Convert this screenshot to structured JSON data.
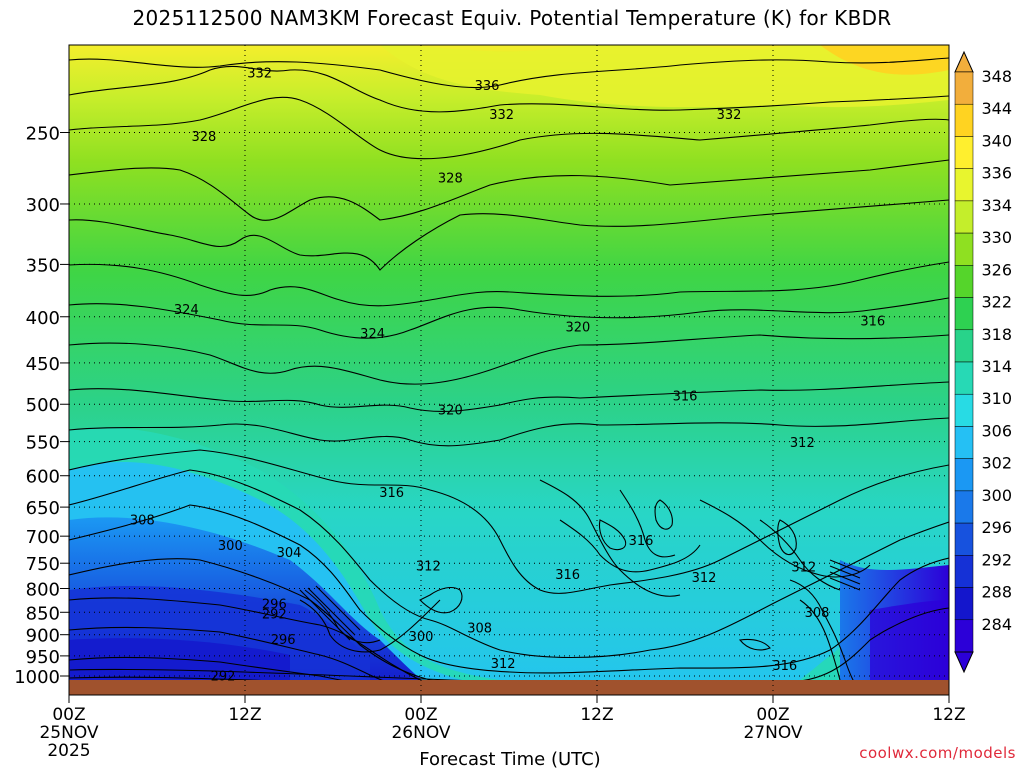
{
  "chart_data": {
    "type": "heatmap",
    "title": "2025112500 NAM3KM Forecast Equiv. Potential Temperature (K) for KBDR",
    "xlabel": "Forecast Time (UTC)",
    "ylabel": "",
    "y_ticks": [
      250,
      300,
      350,
      400,
      450,
      500,
      550,
      600,
      650,
      700,
      750,
      800,
      850,
      900,
      950,
      1000
    ],
    "x_ticks": [
      {
        "hour": 0,
        "label": "00Z",
        "sub": "25NOV",
        "sub2": "2025"
      },
      {
        "hour": 12,
        "label": "12Z"
      },
      {
        "hour": 24,
        "label": "00Z",
        "sub": "26NOV"
      },
      {
        "hour": 36,
        "label": "12Z"
      },
      {
        "hour": 48,
        "label": "00Z",
        "sub": "27NOV"
      },
      {
        "hour": 60,
        "label": "12Z"
      }
    ],
    "xlim": [
      0,
      60
    ],
    "ylim": [
      1000,
      200
    ],
    "colorbar": {
      "levels": [
        348,
        344,
        340,
        336,
        334,
        330,
        326,
        322,
        318,
        314,
        310,
        306,
        302,
        300,
        296,
        292,
        288,
        284
      ],
      "colors": [
        "#f2ae3c",
        "#ffd321",
        "#ffef2e",
        "#e8f52e",
        "#c4ee2b",
        "#8fe021",
        "#55d52b",
        "#2ed151",
        "#28d38a",
        "#27d9b5",
        "#28dbe4",
        "#25c0f4",
        "#1b98f3",
        "#1a79ea",
        "#1752de",
        "#1531d6",
        "#1416cc",
        "#2c00d8"
      ],
      "max_color": "#f2ae3c",
      "min_color": "#2c00d8"
    },
    "contour_labels": [
      {
        "t": 13.0,
        "p": 215,
        "value": "332"
      },
      {
        "t": 28.5,
        "p": 222,
        "value": "336"
      },
      {
        "t": 29.5,
        "p": 239,
        "value": "332"
      },
      {
        "t": 45.0,
        "p": 239,
        "value": "332"
      },
      {
        "t": 9.2,
        "p": 253,
        "value": "328"
      },
      {
        "t": 26.0,
        "p": 281,
        "value": "328"
      },
      {
        "t": 8.0,
        "p": 393,
        "value": "324"
      },
      {
        "t": 20.7,
        "p": 418,
        "value": "324"
      },
      {
        "t": 34.7,
        "p": 411,
        "value": "320"
      },
      {
        "t": 54.8,
        "p": 405,
        "value": "316"
      },
      {
        "t": 26.0,
        "p": 508,
        "value": "320"
      },
      {
        "t": 42.0,
        "p": 490,
        "value": "316"
      },
      {
        "t": 50.0,
        "p": 552,
        "value": "312"
      },
      {
        "t": 22.0,
        "p": 627,
        "value": "316"
      },
      {
        "t": 5.0,
        "p": 673,
        "value": "308"
      },
      {
        "t": 11.0,
        "p": 718,
        "value": "300"
      },
      {
        "t": 15.0,
        "p": 731,
        "value": "304"
      },
      {
        "t": 24.5,
        "p": 756,
        "value": "312"
      },
      {
        "t": 34.0,
        "p": 773,
        "value": "316"
      },
      {
        "t": 39.0,
        "p": 709,
        "value": "316"
      },
      {
        "t": 43.3,
        "p": 779,
        "value": "312"
      },
      {
        "t": 50.1,
        "p": 758,
        "value": "312"
      },
      {
        "t": 51.0,
        "p": 852,
        "value": "308"
      },
      {
        "t": 14.0,
        "p": 833,
        "value": "296"
      },
      {
        "t": 14.0,
        "p": 855,
        "value": "292"
      },
      {
        "t": 14.6,
        "p": 912,
        "value": "296"
      },
      {
        "t": 24.0,
        "p": 905,
        "value": "300"
      },
      {
        "t": 28.0,
        "p": 886,
        "value": "308"
      },
      {
        "t": 29.6,
        "p": 970,
        "value": "312"
      },
      {
        "t": 48.8,
        "p": 975,
        "value": "316"
      },
      {
        "t": 10.5,
        "p": 1001,
        "value": "292"
      }
    ]
  },
  "credit": "coolwx.com/models"
}
